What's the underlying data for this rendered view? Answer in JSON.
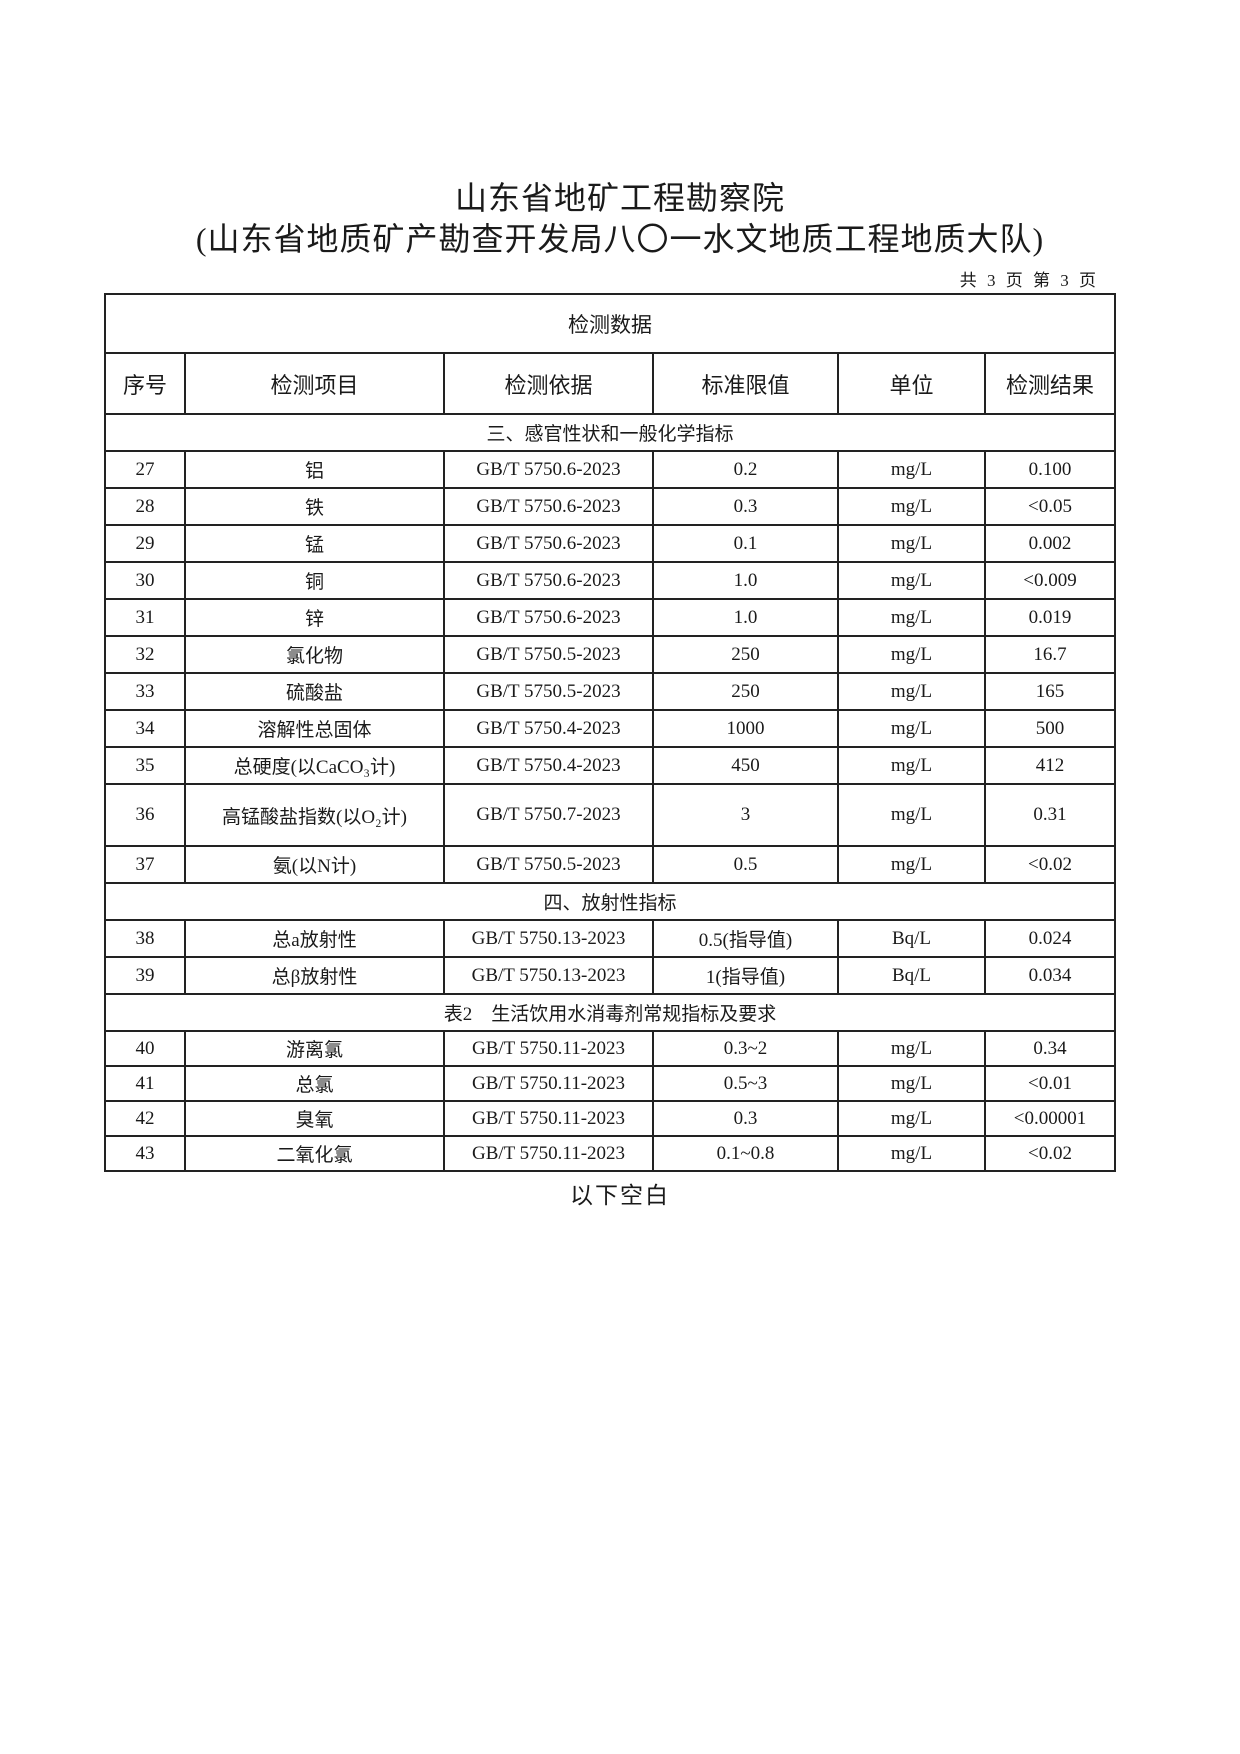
{
  "header": {
    "title_line1": "山东省地矿工程勘察院",
    "title_line2": "(山东省地质矿产勘查开发局八〇一水文地质工程地质大队)",
    "page_info": "共 3 页 第 3 页"
  },
  "table": {
    "caption": "检测数据",
    "columns": [
      "序号",
      "检测项目",
      "检测依据",
      "标准限值",
      "单位",
      "检测结果"
    ],
    "sections": [
      {
        "title": "三、感官性状和一般化学指标",
        "rows": [
          [
            "27",
            "铝",
            "GB/T 5750.6-2023",
            "0.2",
            "mg/L",
            "0.100"
          ],
          [
            "28",
            "铁",
            "GB/T 5750.6-2023",
            "0.3",
            "mg/L",
            "<0.05"
          ],
          [
            "29",
            "锰",
            "GB/T 5750.6-2023",
            "0.1",
            "mg/L",
            "0.002"
          ],
          [
            "30",
            "铜",
            "GB/T 5750.6-2023",
            "1.0",
            "mg/L",
            "<0.009"
          ],
          [
            "31",
            "锌",
            "GB/T 5750.6-2023",
            "1.0",
            "mg/L",
            "0.019"
          ],
          [
            "32",
            "氯化物",
            "GB/T 5750.5-2023",
            "250",
            "mg/L",
            "16.7"
          ],
          [
            "33",
            "硫酸盐",
            "GB/T 5750.5-2023",
            "250",
            "mg/L",
            "165"
          ],
          [
            "34",
            "溶解性总固体",
            "GB/T 5750.4-2023",
            "1000",
            "mg/L",
            "500"
          ],
          [
            "35",
            "总硬度(以CaCO₃计)",
            "GB/T 5750.4-2023",
            "450",
            "mg/L",
            "412"
          ],
          [
            "36",
            "高锰酸盐指数(以O₂计)",
            "GB/T 5750.7-2023",
            "3",
            "mg/L",
            "0.31"
          ],
          [
            "37",
            "氨(以N计)",
            "GB/T 5750.5-2023",
            "0.5",
            "mg/L",
            "<0.02"
          ]
        ]
      },
      {
        "title": "四、放射性指标",
        "rows": [
          [
            "38",
            "总a放射性",
            "GB/T 5750.13-2023",
            "0.5(指导值)",
            "Bq/L",
            "0.024"
          ],
          [
            "39",
            "总β放射性",
            "GB/T 5750.13-2023",
            "1(指导值)",
            "Bq/L",
            "0.034"
          ]
        ]
      },
      {
        "title": "表2　生活饮用水消毒剂常规指标及要求",
        "rows": [
          [
            "40",
            "游离氯",
            "GB/T 5750.11-2023",
            "0.3~2",
            "mg/L",
            "0.34"
          ],
          [
            "41",
            "总氯",
            "GB/T 5750.11-2023",
            "0.5~3",
            "mg/L",
            "<0.01"
          ],
          [
            "42",
            "臭氧",
            "GB/T 5750.11-2023",
            "0.3",
            "mg/L",
            "<0.00001"
          ],
          [
            "43",
            "二氧化氯",
            "GB/T 5750.11-2023",
            "0.1~0.8",
            "mg/L",
            "<0.02"
          ]
        ]
      }
    ]
  },
  "footer": {
    "end_note": "以下空白"
  }
}
